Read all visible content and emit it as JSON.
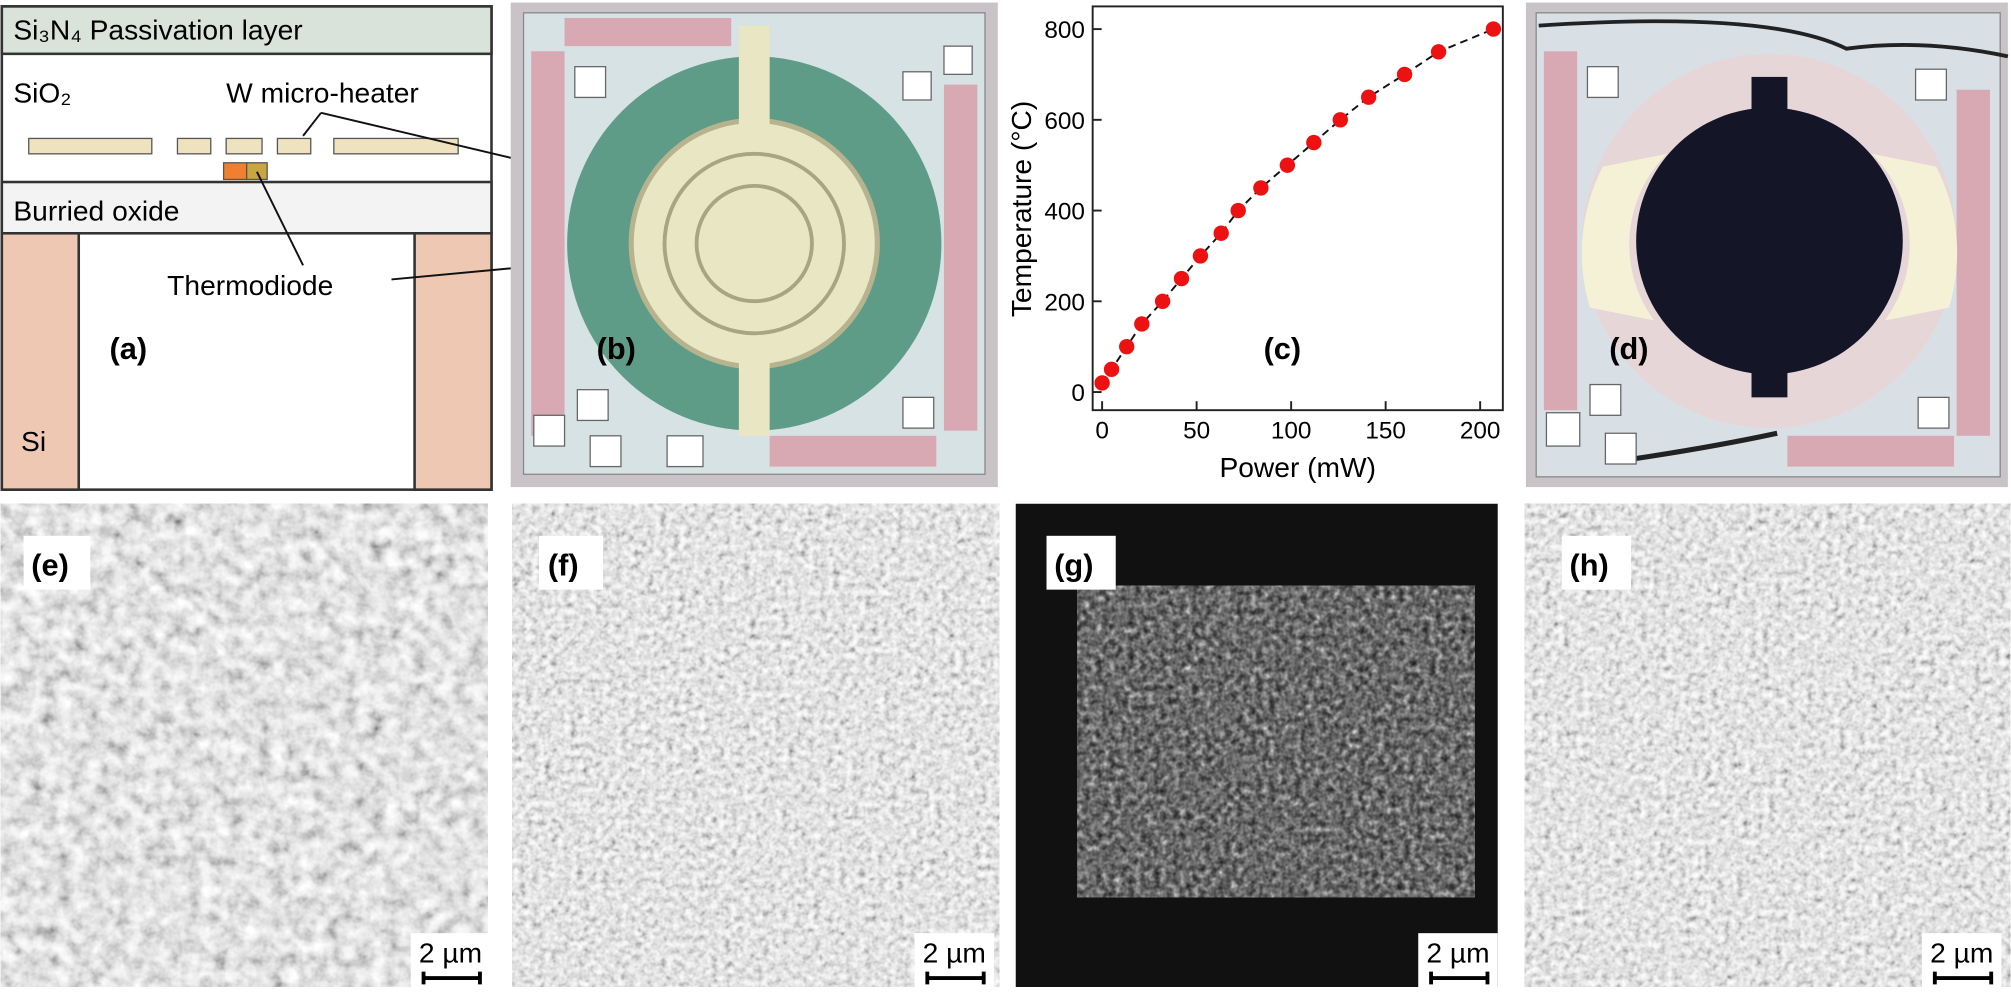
{
  "diagram": {
    "passivation": "Si₃N₄ Passivation layer",
    "oxide": "SiO₂",
    "heater": "W micro-heater",
    "buried": "Burried oxide",
    "diode": "Thermodiode",
    "substrate": "Si"
  },
  "panels": [
    "(a)",
    "(b)",
    "(c)",
    "(d)",
    "(e)",
    "(f)",
    "(g)",
    "(h)"
  ],
  "scale_bar": "2 µm",
  "chart_data": {
    "type": "scatter",
    "x_label": "Power (mW)",
    "y_label": "Temperature (°C)",
    "color": "#ee1111",
    "line": "dashed",
    "x": [
      0,
      5,
      13,
      21,
      32,
      42,
      52,
      63,
      72,
      84,
      98,
      112,
      126,
      141,
      160,
      178,
      207
    ],
    "values": [
      20,
      50,
      100,
      150,
      200,
      250,
      300,
      350,
      400,
      450,
      500,
      550,
      600,
      650,
      700,
      750,
      800
    ],
    "xlim": [
      -5,
      212
    ],
    "xticks": [
      0,
      50,
      100,
      150,
      200
    ],
    "ylim": [
      -40,
      850
    ],
    "yticks": [
      0,
      200,
      400,
      600,
      800
    ]
  }
}
